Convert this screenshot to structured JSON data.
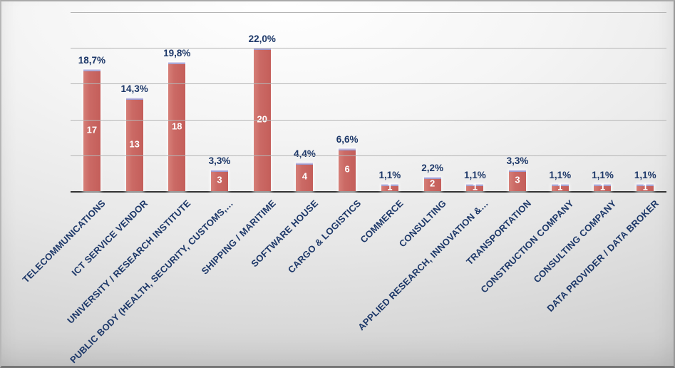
{
  "chart_data": {
    "type": "bar",
    "title": "",
    "xlabel": "",
    "ylabel": "",
    "ylim": [
      0,
      25
    ],
    "gridline_step": 5,
    "grid": true,
    "legend": "none",
    "categories": [
      "TELECOMMUNICATIONS",
      "ICT SERVICE VENDOR",
      "UNIVERSITY / RESEARCH INSTITUTE",
      "PUBLIC BODY (HEALTH, SECURITY, CUSTOMS,…",
      "SHIPPING / MARITIME",
      "SOFTWARE HOUSE",
      "CARGO & LOGISTICS",
      "COMMERCE",
      "CONSULTING",
      "APPLIED RESEARCH, INNOVATION &…",
      "TRANSPORTATION",
      "CONSTRUCTION COMPANY",
      "CONSULTING COMPANY",
      "DATA PROVIDER / DATA BROKER"
    ],
    "values": [
      17,
      13,
      18,
      3,
      20,
      4,
      6,
      1,
      2,
      1,
      3,
      1,
      1,
      1
    ],
    "percent_labels": [
      "18,7%",
      "14,3%",
      "19,8%",
      "3,3%",
      "22,0%",
      "4,4%",
      "6,6%",
      "1,1%",
      "2,2%",
      "1,1%",
      "3,3%",
      "1,1%",
      "1,1%",
      "1,1%"
    ],
    "colors": {
      "bar_fill": "#cb6a65",
      "bar_cap": "#8f8cc6",
      "label_text": "#1c3768",
      "value_text": "#ffffff",
      "gridline": "#b5b5b5",
      "axis_line": "#333333",
      "background": "#e7e7e7"
    }
  }
}
